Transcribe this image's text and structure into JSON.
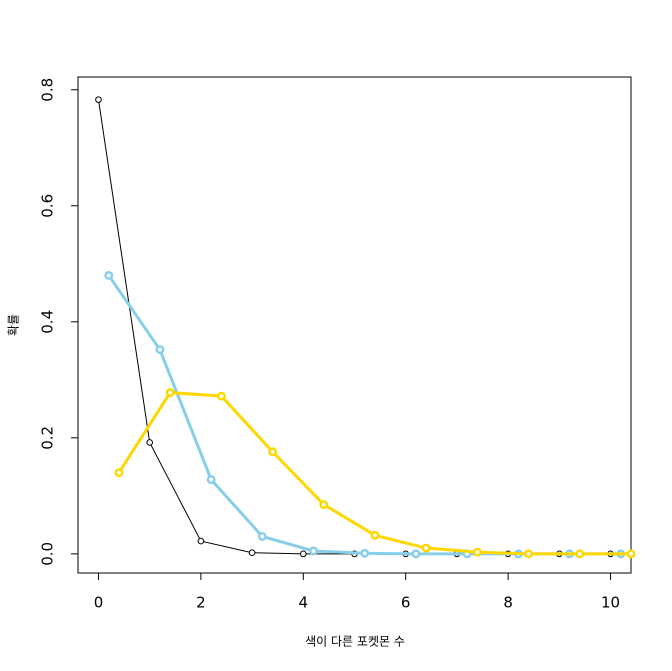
{
  "chart_data": {
    "type": "line",
    "xlabel": "색이 다른 포켓몬 수",
    "ylabel": "확률",
    "xlim": [
      -0.4,
      10.4
    ],
    "ylim": [
      -0.033,
      0.822
    ],
    "xticks": [
      0,
      2,
      4,
      6,
      8,
      10
    ],
    "yticks": [
      {
        "value": 0,
        "label": "0.0"
      },
      0.2,
      0.4,
      0.6,
      0.8
    ],
    "series": [
      {
        "color": "#000000",
        "x": [
          0,
          1,
          2,
          3,
          4,
          5,
          6,
          7,
          8,
          9,
          10
        ],
        "values": [
          0.783,
          0.192,
          0.022,
          0.002,
          0,
          0,
          0,
          0,
          0,
          0,
          0
        ]
      },
      {
        "color": "#87ceeb",
        "x": [
          0.2,
          1.2,
          2.2,
          3.2,
          4.2,
          5.2,
          6.2,
          7.2,
          8.2,
          9.2,
          10.2
        ],
        "values": [
          0.48,
          0.352,
          0.128,
          0.03,
          0.005,
          0.001,
          0,
          0,
          0,
          0,
          0
        ]
      },
      {
        "color": "#ffd700",
        "x": [
          0.4,
          1.4,
          2.4,
          3.4,
          4.4,
          5.4,
          6.4,
          7.4,
          8.4,
          9.4,
          10.4
        ],
        "values": [
          0.14,
          0.278,
          0.272,
          0.176,
          0.085,
          0.032,
          0.01,
          0.003,
          0,
          0,
          0
        ]
      }
    ]
  }
}
